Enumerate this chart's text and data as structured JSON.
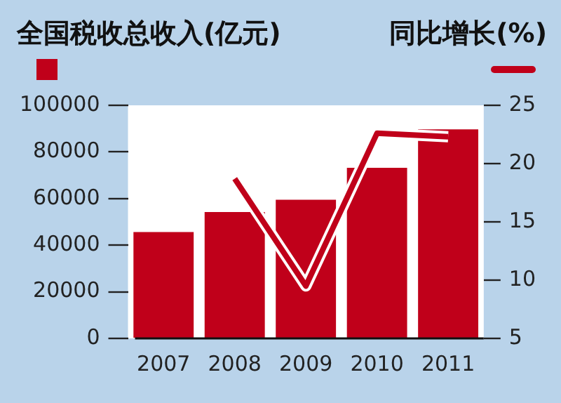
{
  "chart_data": {
    "type": "bar",
    "ylabel": "全国税收总收入(亿元)",
    "y2label": "同比增长(%)",
    "categories": [
      "2007",
      "2008",
      "2009",
      "2010",
      "2011"
    ],
    "series": [
      {
        "color": "#c0001a",
        "values": [
          45600,
          54200,
          59500,
          73200,
          89700
        ]
      },
      {
        "type": "line",
        "axis": "y2",
        "color": "#c0001a",
        "values": [
          null,
          18.7,
          9.5,
          22.6,
          22.3
        ]
      }
    ],
    "ylim": [
      0,
      100000
    ],
    "yticks": [
      0,
      20000,
      40000,
      60000,
      80000,
      100000
    ],
    "y2lim": [
      5,
      25
    ],
    "y2ticks": [
      5,
      10,
      15,
      20,
      25
    ],
    "grid": false,
    "marker": "none"
  }
}
